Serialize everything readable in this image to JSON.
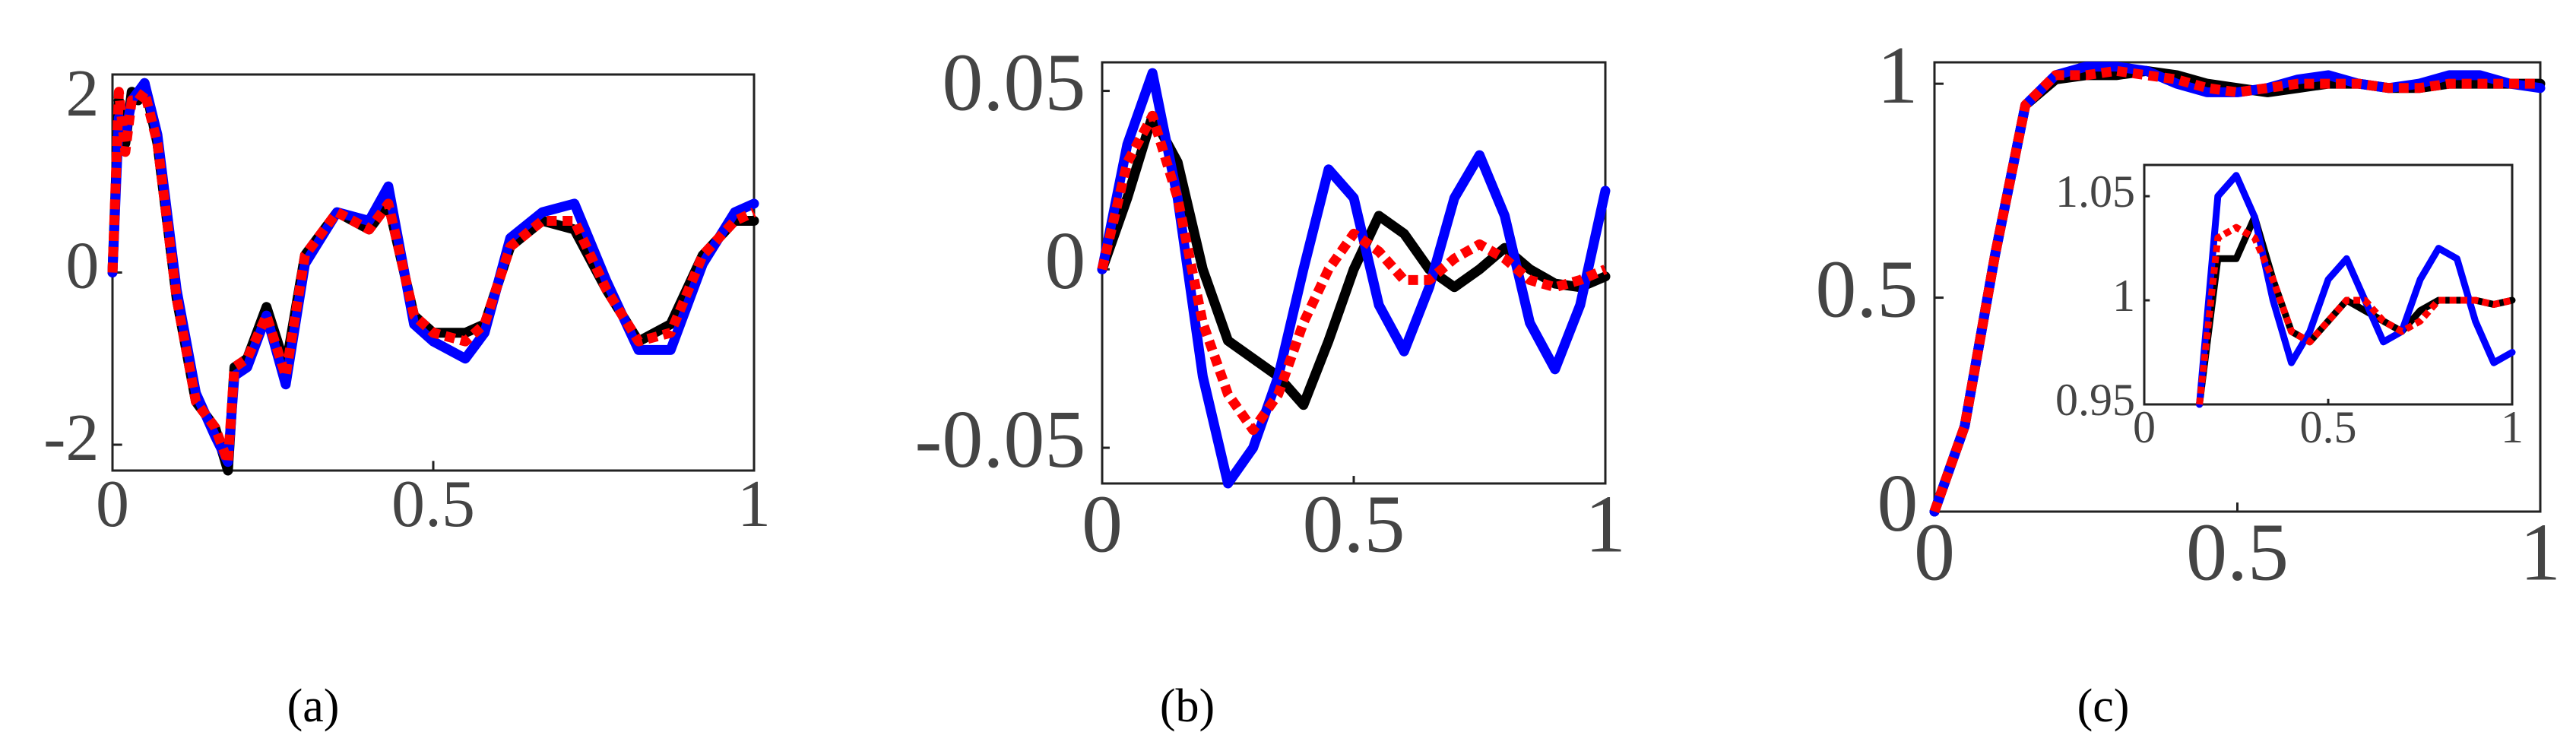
{
  "chart_data": [
    {
      "type": "line",
      "caption": "(a)",
      "x": [
        0,
        0.01,
        0.02,
        0.03,
        0.04,
        0.05,
        0.07,
        0.1,
        0.13,
        0.16,
        0.18,
        0.19,
        0.21,
        0.24,
        0.27,
        0.3,
        0.35,
        0.4,
        0.43,
        0.47,
        0.5,
        0.55,
        0.58,
        0.62,
        0.67,
        0.72,
        0.77,
        0.82,
        0.87,
        0.92,
        0.97,
        1.0
      ],
      "series": [
        {
          "color": "#000000",
          "linestyle": "solid",
          "values": [
            0,
            2,
            1.5,
            2.1,
            2.0,
            2.2,
            1.5,
            -0.3,
            -1.5,
            -1.8,
            -2.3,
            -1.1,
            -1.0,
            -0.4,
            -1.1,
            0.2,
            0.7,
            0.5,
            0.8,
            -0.5,
            -0.7,
            -0.7,
            -0.6,
            0.3,
            0.6,
            0.5,
            -0.2,
            -0.8,
            -0.6,
            0.2,
            0.6,
            0.6
          ]
        },
        {
          "color": "#0000ff",
          "linestyle": "solid",
          "values": [
            0,
            1.8,
            1.6,
            2.0,
            2.1,
            2.2,
            1.6,
            -0.2,
            -1.4,
            -1.9,
            -2.2,
            -1.2,
            -1.1,
            -0.5,
            -1.3,
            0.1,
            0.7,
            0.6,
            1.0,
            -0.6,
            -0.8,
            -1.0,
            -0.7,
            0.4,
            0.7,
            0.8,
            -0.1,
            -0.9,
            -0.9,
            0.1,
            0.7,
            0.8
          ]
        },
        {
          "color": "#ff0000",
          "linestyle": "dotted",
          "values": [
            0,
            2.1,
            1.4,
            2.0,
            2.0,
            2.1,
            1.5,
            -0.3,
            -1.5,
            -1.8,
            -2.2,
            -1.1,
            -1.0,
            -0.5,
            -1.2,
            0.2,
            0.7,
            0.5,
            0.8,
            -0.5,
            -0.7,
            -0.8,
            -0.6,
            0.3,
            0.6,
            0.6,
            -0.2,
            -0.8,
            -0.7,
            0.2,
            0.6,
            0.7
          ]
        }
      ],
      "xlim": [
        0,
        1
      ],
      "xticks": [
        0,
        0.5,
        1
      ],
      "ylim": [
        -2.3,
        2.3
      ],
      "yticks": [
        -2,
        0,
        2
      ],
      "grid": false
    },
    {
      "type": "line",
      "caption": "(b)",
      "x": [
        0,
        0.05,
        0.1,
        0.15,
        0.2,
        0.25,
        0.3,
        0.35,
        0.4,
        0.45,
        0.5,
        0.55,
        0.6,
        0.65,
        0.7,
        0.75,
        0.8,
        0.85,
        0.9,
        0.95,
        1.0
      ],
      "series": [
        {
          "color": "#000000",
          "linestyle": "solid",
          "values": [
            0,
            0.02,
            0.043,
            0.03,
            0.0,
            -0.02,
            -0.025,
            -0.03,
            -0.038,
            -0.02,
            0.0,
            0.015,
            0.01,
            0.0,
            -0.005,
            0.0,
            0.006,
            0.0,
            -0.004,
            -0.005,
            -0.002
          ]
        },
        {
          "color": "#0000ff",
          "linestyle": "solid",
          "values": [
            0,
            0.035,
            0.055,
            0.02,
            -0.03,
            -0.06,
            -0.05,
            -0.03,
            0.0,
            0.028,
            0.02,
            -0.01,
            -0.023,
            -0.005,
            0.02,
            0.032,
            0.015,
            -0.015,
            -0.028,
            -0.01,
            0.022
          ]
        },
        {
          "color": "#ff0000",
          "linestyle": "dotted",
          "values": [
            0,
            0.03,
            0.043,
            0.02,
            -0.015,
            -0.035,
            -0.045,
            -0.035,
            -0.015,
            0.0,
            0.01,
            0.005,
            -0.003,
            -0.003,
            0.003,
            0.007,
            0.003,
            -0.003,
            -0.005,
            -0.003,
            0.0
          ]
        }
      ],
      "xlim": [
        0,
        1
      ],
      "xticks": [
        0,
        0.5,
        1
      ],
      "ylim": [
        -0.06,
        0.058
      ],
      "yticks": [
        -0.05,
        0,
        0.05
      ],
      "grid": false
    },
    {
      "type": "line",
      "caption": "(c)",
      "x": [
        0,
        0.05,
        0.1,
        0.15,
        0.2,
        0.25,
        0.3,
        0.35,
        0.4,
        0.45,
        0.5,
        0.55,
        0.6,
        0.65,
        0.7,
        0.75,
        0.8,
        0.85,
        0.9,
        0.95,
        1.0
      ],
      "series": [
        {
          "color": "#000000",
          "linestyle": "solid",
          "values": [
            0,
            0.2,
            0.6,
            0.95,
            1.01,
            1.02,
            1.02,
            1.03,
            1.02,
            1.0,
            0.99,
            0.98,
            0.99,
            1.0,
            1.0,
            0.99,
            0.99,
            1.0,
            1.0,
            1.0,
            1.0
          ]
        },
        {
          "color": "#0000ff",
          "linestyle": "solid",
          "values": [
            0,
            0.2,
            0.6,
            0.95,
            1.02,
            1.04,
            1.04,
            1.03,
            1.0,
            0.98,
            0.98,
            0.99,
            1.01,
            1.02,
            1.0,
            0.99,
            1.0,
            1.02,
            1.02,
            1.0,
            0.99
          ]
        },
        {
          "color": "#ff0000",
          "linestyle": "dotted",
          "values": [
            0,
            0.2,
            0.6,
            0.95,
            1.02,
            1.02,
            1.03,
            1.02,
            1.01,
            0.99,
            0.98,
            0.99,
            1.0,
            1.0,
            1.0,
            0.99,
            0.99,
            1.0,
            1.0,
            1.0,
            1.0
          ]
        }
      ],
      "xlim": [
        0,
        1
      ],
      "xticks": [
        0,
        0.5,
        1
      ],
      "ylim": [
        0,
        1.05
      ],
      "yticks": [
        0,
        0.5,
        1
      ],
      "grid": false,
      "inset": {
        "type": "line",
        "x": [
          0.15,
          0.2,
          0.25,
          0.3,
          0.35,
          0.4,
          0.45,
          0.5,
          0.55,
          0.6,
          0.65,
          0.7,
          0.75,
          0.8,
          0.85,
          0.9,
          0.95,
          1.0
        ],
        "series": [
          {
            "color": "#000000",
            "linestyle": "solid",
            "values": [
              0.95,
              1.02,
              1.02,
              1.04,
              1.01,
              0.985,
              0.98,
              0.99,
              1.0,
              0.995,
              0.99,
              0.985,
              0.995,
              1.0,
              1.0,
              1.0,
              0.998,
              1.0
            ]
          },
          {
            "color": "#0000ff",
            "linestyle": "solid",
            "values": [
              0.95,
              1.05,
              1.06,
              1.04,
              1.0,
              0.97,
              0.985,
              1.01,
              1.02,
              1.0,
              0.98,
              0.985,
              1.01,
              1.025,
              1.02,
              0.99,
              0.97,
              0.975
            ]
          },
          {
            "color": "#ff0000",
            "linestyle": "dotted",
            "values": [
              0.95,
              1.03,
              1.035,
              1.03,
              1.01,
              0.985,
              0.98,
              0.99,
              1.0,
              1.0,
              0.99,
              0.985,
              0.99,
              1.0,
              1.0,
              1.0,
              0.998,
              1.0
            ]
          }
        ],
        "xlim": [
          0,
          1
        ],
        "xticks": [
          0,
          0.5,
          1
        ],
        "ylim": [
          0.95,
          1.065
        ],
        "yticks": [
          0.95,
          1,
          1.05
        ],
        "grid": false
      }
    }
  ]
}
